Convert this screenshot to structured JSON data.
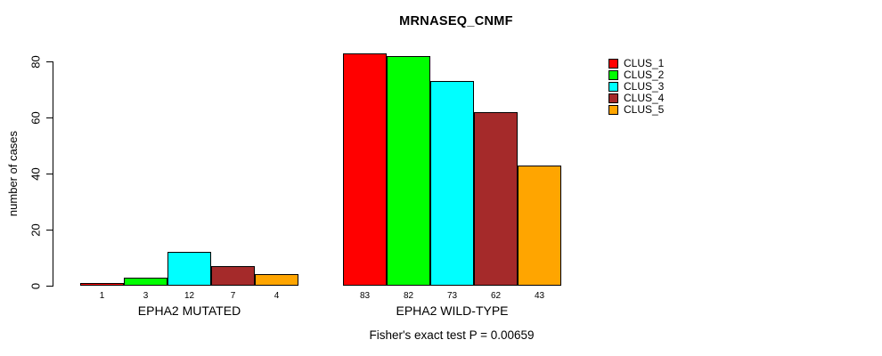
{
  "chart_data": {
    "type": "bar",
    "title": "MRNASEQ_CNMF",
    "ylabel": "number of cases",
    "xlabel": "",
    "yticks": [
      0,
      20,
      40,
      60,
      80
    ],
    "ylim": [
      0,
      83
    ],
    "grid": false,
    "legend_position": "right",
    "categories": [
      "EPHA2 MUTATED",
      "EPHA2 WILD-TYPE"
    ],
    "series": [
      {
        "name": "CLUS_1",
        "color": "#FF0000",
        "values": [
          1,
          83
        ]
      },
      {
        "name": "CLUS_2",
        "color": "#00FF00",
        "values": [
          3,
          82
        ]
      },
      {
        "name": "CLUS_3",
        "color": "#00FFFF",
        "values": [
          12,
          73
        ]
      },
      {
        "name": "CLUS_4",
        "color": "#A52A2A",
        "values": [
          7,
          62
        ]
      },
      {
        "name": "CLUS_5",
        "color": "#FFA500",
        "values": [
          4,
          43
        ]
      }
    ],
    "bar_value_labels": {
      "EPHA2 MUTATED": [
        1,
        3,
        12,
        7,
        4
      ],
      "EPHA2 WILD-TYPE": [
        83,
        82,
        73,
        62,
        43
      ]
    },
    "annotation": "Fisher's exact test P = 0.00659"
  }
}
